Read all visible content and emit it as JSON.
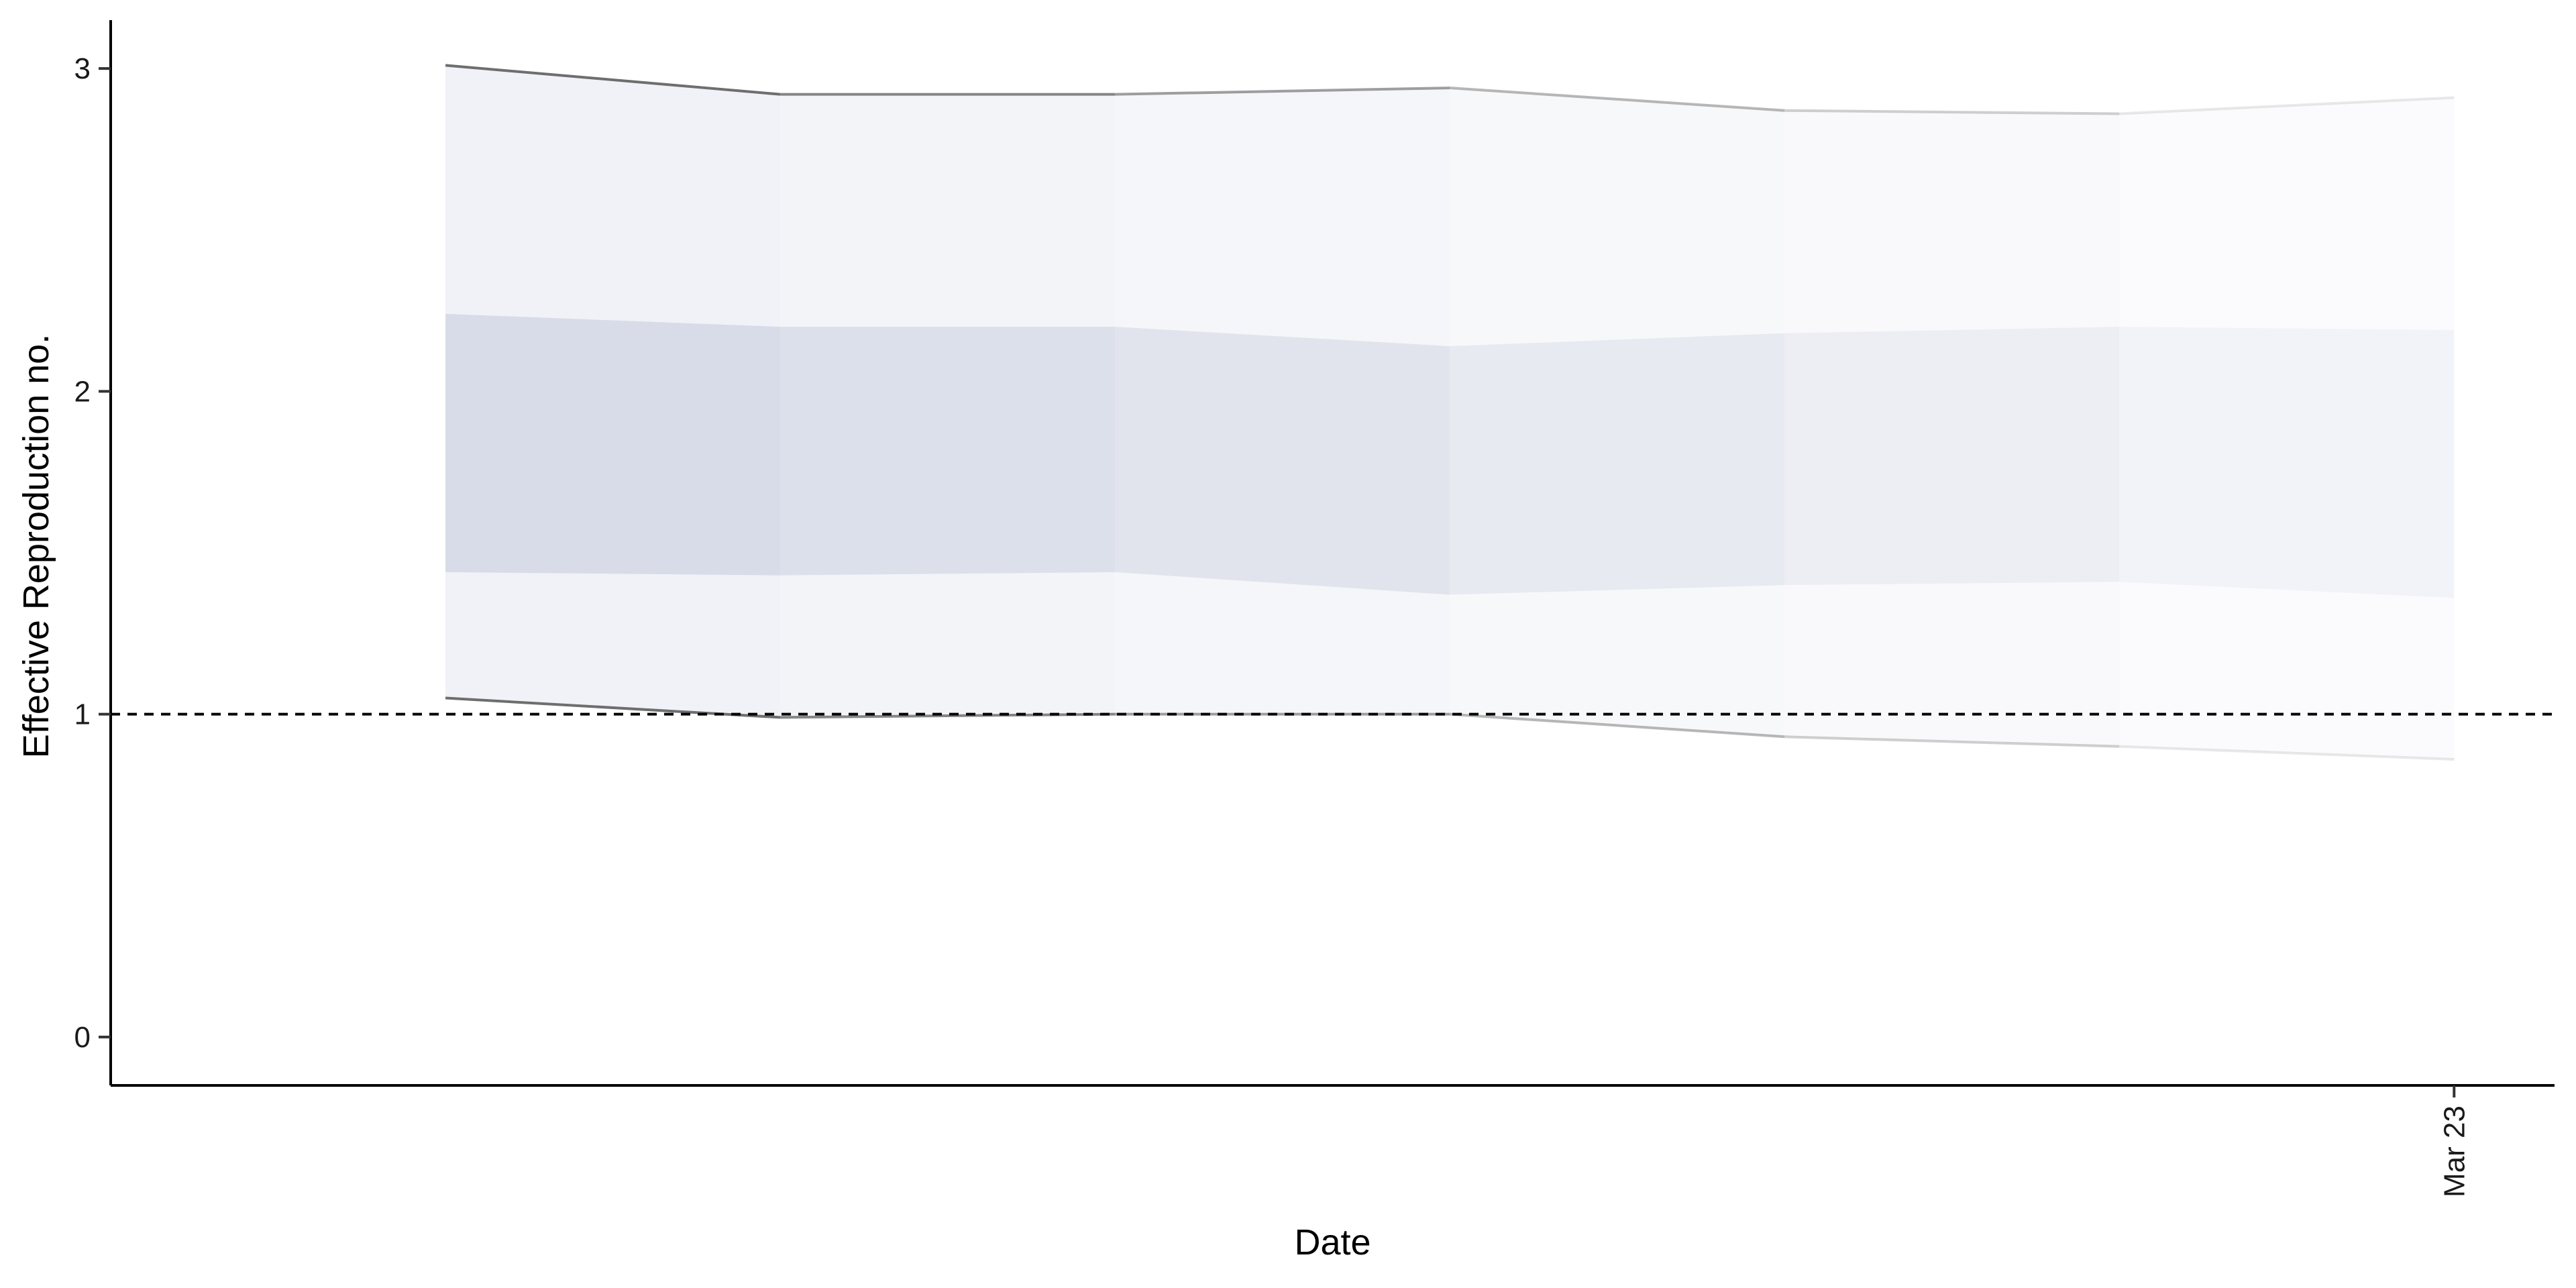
{
  "chart_data": {
    "type": "area",
    "title": "",
    "xlabel": "Date",
    "ylabel": "Effective Reproduction no.",
    "ylim": [
      -0.15,
      3.15
    ],
    "xlim": [
      "2020-03-16",
      "2020-03-23"
    ],
    "y_ticks": [
      0,
      1,
      2,
      3
    ],
    "y_tick_labels": [
      "0",
      "1",
      "2",
      "3"
    ],
    "x_ticks": [
      "2020-03-23"
    ],
    "x_tick_labels": [
      "Mar 23"
    ],
    "x": [
      "2020-03-17",
      "2020-03-18",
      "2020-03-19",
      "2020-03-20",
      "2020-03-21",
      "2020-03-22",
      "2020-03-23"
    ],
    "series": [
      {
        "lower": [
          1.05,
          0.99,
          1.0,
          1.0,
          0.93,
          0.9,
          0.86
        ],
        "upper": [
          3.01,
          2.92,
          2.92,
          2.94,
          2.87,
          2.86,
          2.91
        ]
      },
      {
        "lower": [
          1.44,
          1.43,
          1.44,
          1.37,
          1.4,
          1.41,
          1.36
        ],
        "upper": [
          2.24,
          2.2,
          2.2,
          2.14,
          2.18,
          2.2,
          2.19
        ]
      }
    ],
    "reference_line": {
      "y": 1,
      "style": "dashed"
    },
    "grid": false,
    "legend": "none",
    "colors": {
      "outer_band": "#e4e7f0",
      "inner_band": "#c4cadc",
      "bound_line": "#6e6e6e",
      "reference_line": "#000000",
      "axis": "#000000"
    }
  }
}
